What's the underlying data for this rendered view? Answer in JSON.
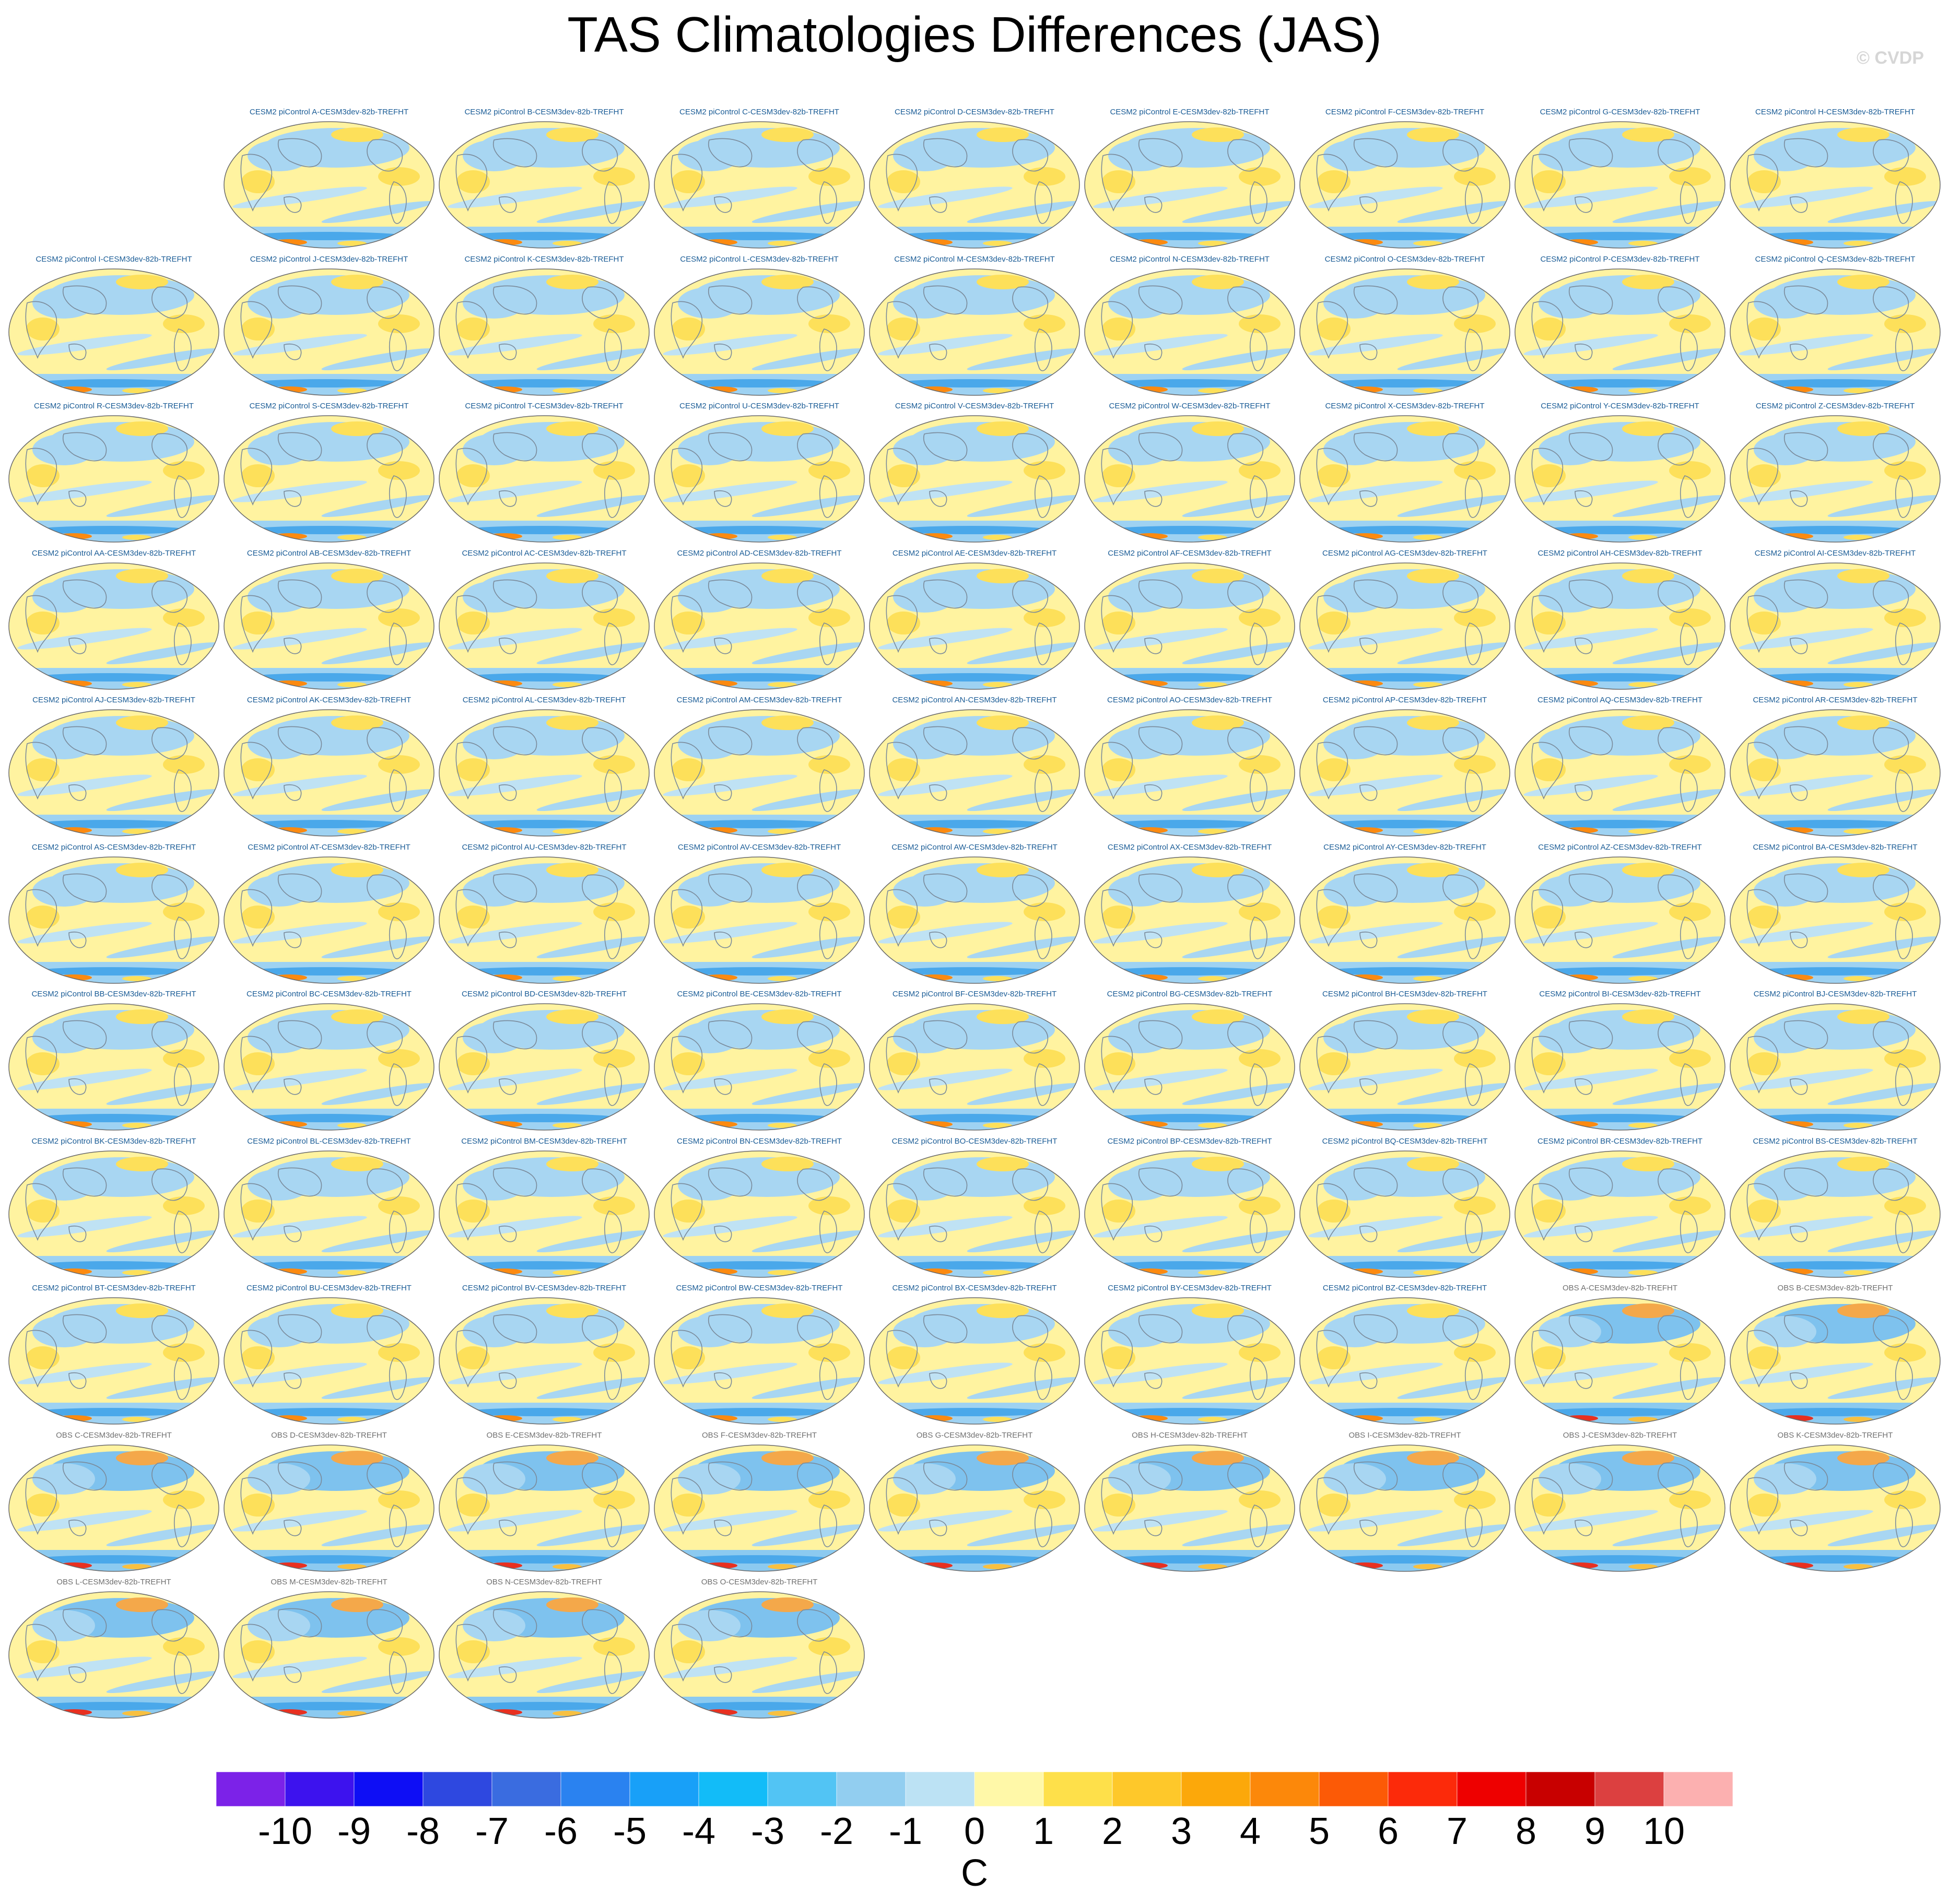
{
  "title": "TAS Climatologies Differences (JAS)",
  "credit": "© CVDP",
  "panels": [
    {
      "label": "CESM2 piControl A-CESM3dev-82b-TREFHT",
      "kind": "model"
    },
    {
      "label": "CESM2 piControl B-CESM3dev-82b-TREFHT",
      "kind": "model"
    },
    {
      "label": "CESM2 piControl C-CESM3dev-82b-TREFHT",
      "kind": "model"
    },
    {
      "label": "CESM2 piControl D-CESM3dev-82b-TREFHT",
      "kind": "model"
    },
    {
      "label": "CESM2 piControl E-CESM3dev-82b-TREFHT",
      "kind": "model"
    },
    {
      "label": "CESM2 piControl F-CESM3dev-82b-TREFHT",
      "kind": "model"
    },
    {
      "label": "CESM2 piControl G-CESM3dev-82b-TREFHT",
      "kind": "model"
    },
    {
      "label": "CESM2 piControl H-CESM3dev-82b-TREFHT",
      "kind": "model"
    },
    {
      "label": "CESM2 piControl I-CESM3dev-82b-TREFHT",
      "kind": "model"
    },
    {
      "label": "CESM2 piControl J-CESM3dev-82b-TREFHT",
      "kind": "model"
    },
    {
      "label": "CESM2 piControl K-CESM3dev-82b-TREFHT",
      "kind": "model"
    },
    {
      "label": "CESM2 piControl L-CESM3dev-82b-TREFHT",
      "kind": "model"
    },
    {
      "label": "CESM2 piControl M-CESM3dev-82b-TREFHT",
      "kind": "model"
    },
    {
      "label": "CESM2 piControl N-CESM3dev-82b-TREFHT",
      "kind": "model"
    },
    {
      "label": "CESM2 piControl O-CESM3dev-82b-TREFHT",
      "kind": "model"
    },
    {
      "label": "CESM2 piControl P-CESM3dev-82b-TREFHT",
      "kind": "model"
    },
    {
      "label": "CESM2 piControl Q-CESM3dev-82b-TREFHT",
      "kind": "model"
    },
    {
      "label": "CESM2 piControl R-CESM3dev-82b-TREFHT",
      "kind": "model"
    },
    {
      "label": "CESM2 piControl S-CESM3dev-82b-TREFHT",
      "kind": "model"
    },
    {
      "label": "CESM2 piControl T-CESM3dev-82b-TREFHT",
      "kind": "model"
    },
    {
      "label": "CESM2 piControl U-CESM3dev-82b-TREFHT",
      "kind": "model"
    },
    {
      "label": "CESM2 piControl V-CESM3dev-82b-TREFHT",
      "kind": "model"
    },
    {
      "label": "CESM2 piControl W-CESM3dev-82b-TREFHT",
      "kind": "model"
    },
    {
      "label": "CESM2 piControl X-CESM3dev-82b-TREFHT",
      "kind": "model"
    },
    {
      "label": "CESM2 piControl Y-CESM3dev-82b-TREFHT",
      "kind": "model"
    },
    {
      "label": "CESM2 piControl Z-CESM3dev-82b-TREFHT",
      "kind": "model"
    },
    {
      "label": "CESM2 piControl AA-CESM3dev-82b-TREFHT",
      "kind": "model"
    },
    {
      "label": "CESM2 piControl AB-CESM3dev-82b-TREFHT",
      "kind": "model"
    },
    {
      "label": "CESM2 piControl AC-CESM3dev-82b-TREFHT",
      "kind": "model"
    },
    {
      "label": "CESM2 piControl AD-CESM3dev-82b-TREFHT",
      "kind": "model"
    },
    {
      "label": "CESM2 piControl AE-CESM3dev-82b-TREFHT",
      "kind": "model"
    },
    {
      "label": "CESM2 piControl AF-CESM3dev-82b-TREFHT",
      "kind": "model"
    },
    {
      "label": "CESM2 piControl AG-CESM3dev-82b-TREFHT",
      "kind": "model"
    },
    {
      "label": "CESM2 piControl AH-CESM3dev-82b-TREFHT",
      "kind": "model"
    },
    {
      "label": "CESM2 piControl AI-CESM3dev-82b-TREFHT",
      "kind": "model"
    },
    {
      "label": "CESM2 piControl AJ-CESM3dev-82b-TREFHT",
      "kind": "model"
    },
    {
      "label": "CESM2 piControl AK-CESM3dev-82b-TREFHT",
      "kind": "model"
    },
    {
      "label": "CESM2 piControl AL-CESM3dev-82b-TREFHT",
      "kind": "model"
    },
    {
      "label": "CESM2 piControl AM-CESM3dev-82b-TREFHT",
      "kind": "model"
    },
    {
      "label": "CESM2 piControl AN-CESM3dev-82b-TREFHT",
      "kind": "model"
    },
    {
      "label": "CESM2 piControl AO-CESM3dev-82b-TREFHT",
      "kind": "model"
    },
    {
      "label": "CESM2 piControl AP-CESM3dev-82b-TREFHT",
      "kind": "model"
    },
    {
      "label": "CESM2 piControl AQ-CESM3dev-82b-TREFHT",
      "kind": "model"
    },
    {
      "label": "CESM2 piControl AR-CESM3dev-82b-TREFHT",
      "kind": "model"
    },
    {
      "label": "CESM2 piControl AS-CESM3dev-82b-TREFHT",
      "kind": "model"
    },
    {
      "label": "CESM2 piControl AT-CESM3dev-82b-TREFHT",
      "kind": "model"
    },
    {
      "label": "CESM2 piControl AU-CESM3dev-82b-TREFHT",
      "kind": "model"
    },
    {
      "label": "CESM2 piControl AV-CESM3dev-82b-TREFHT",
      "kind": "model"
    },
    {
      "label": "CESM2 piControl AW-CESM3dev-82b-TREFHT",
      "kind": "model"
    },
    {
      "label": "CESM2 piControl AX-CESM3dev-82b-TREFHT",
      "kind": "model"
    },
    {
      "label": "CESM2 piControl AY-CESM3dev-82b-TREFHT",
      "kind": "model"
    },
    {
      "label": "CESM2 piControl AZ-CESM3dev-82b-TREFHT",
      "kind": "model"
    },
    {
      "label": "CESM2 piControl BA-CESM3dev-82b-TREFHT",
      "kind": "model"
    },
    {
      "label": "CESM2 piControl BB-CESM3dev-82b-TREFHT",
      "kind": "model"
    },
    {
      "label": "CESM2 piControl BC-CESM3dev-82b-TREFHT",
      "kind": "model"
    },
    {
      "label": "CESM2 piControl BD-CESM3dev-82b-TREFHT",
      "kind": "model"
    },
    {
      "label": "CESM2 piControl BE-CESM3dev-82b-TREFHT",
      "kind": "model"
    },
    {
      "label": "CESM2 piControl BF-CESM3dev-82b-TREFHT",
      "kind": "model"
    },
    {
      "label": "CESM2 piControl BG-CESM3dev-82b-TREFHT",
      "kind": "model"
    },
    {
      "label": "CESM2 piControl BH-CESM3dev-82b-TREFHT",
      "kind": "model"
    },
    {
      "label": "CESM2 piControl BI-CESM3dev-82b-TREFHT",
      "kind": "model"
    },
    {
      "label": "CESM2 piControl BJ-CESM3dev-82b-TREFHT",
      "kind": "model"
    },
    {
      "label": "CESM2 piControl BK-CESM3dev-82b-TREFHT",
      "kind": "model"
    },
    {
      "label": "CESM2 piControl BL-CESM3dev-82b-TREFHT",
      "kind": "model"
    },
    {
      "label": "CESM2 piControl BM-CESM3dev-82b-TREFHT",
      "kind": "model"
    },
    {
      "label": "CESM2 piControl BN-CESM3dev-82b-TREFHT",
      "kind": "model"
    },
    {
      "label": "CESM2 piControl BO-CESM3dev-82b-TREFHT",
      "kind": "model"
    },
    {
      "label": "CESM2 piControl BP-CESM3dev-82b-TREFHT",
      "kind": "model"
    },
    {
      "label": "CESM2 piControl BQ-CESM3dev-82b-TREFHT",
      "kind": "model"
    },
    {
      "label": "CESM2 piControl BR-CESM3dev-82b-TREFHT",
      "kind": "model"
    },
    {
      "label": "CESM2 piControl BS-CESM3dev-82b-TREFHT",
      "kind": "model"
    },
    {
      "label": "CESM2 piControl BT-CESM3dev-82b-TREFHT",
      "kind": "model"
    },
    {
      "label": "CESM2 piControl BU-CESM3dev-82b-TREFHT",
      "kind": "model"
    },
    {
      "label": "CESM2 piControl BV-CESM3dev-82b-TREFHT",
      "kind": "model"
    },
    {
      "label": "CESM2 piControl BW-CESM3dev-82b-TREFHT",
      "kind": "model"
    },
    {
      "label": "CESM2 piControl BX-CESM3dev-82b-TREFHT",
      "kind": "model"
    },
    {
      "label": "CESM2 piControl BY-CESM3dev-82b-TREFHT",
      "kind": "model"
    },
    {
      "label": "CESM2 piControl BZ-CESM3dev-82b-TREFHT",
      "kind": "model"
    },
    {
      "label": "OBS A-CESM3dev-82b-TREFHT",
      "kind": "obs"
    },
    {
      "label": "OBS B-CESM3dev-82b-TREFHT",
      "kind": "obs"
    },
    {
      "label": "OBS C-CESM3dev-82b-TREFHT",
      "kind": "obs"
    },
    {
      "label": "OBS D-CESM3dev-82b-TREFHT",
      "kind": "obs"
    },
    {
      "label": "OBS E-CESM3dev-82b-TREFHT",
      "kind": "obs"
    },
    {
      "label": "OBS F-CESM3dev-82b-TREFHT",
      "kind": "obs"
    },
    {
      "label": "OBS G-CESM3dev-82b-TREFHT",
      "kind": "obs"
    },
    {
      "label": "OBS H-CESM3dev-82b-TREFHT",
      "kind": "obs"
    },
    {
      "label": "OBS I-CESM3dev-82b-TREFHT",
      "kind": "obs"
    },
    {
      "label": "OBS J-CESM3dev-82b-TREFHT",
      "kind": "obs"
    },
    {
      "label": "OBS K-CESM3dev-82b-TREFHT",
      "kind": "obs"
    },
    {
      "label": "OBS L-CESM3dev-82b-TREFHT",
      "kind": "obs"
    },
    {
      "label": "OBS M-CESM3dev-82b-TREFHT",
      "kind": "obs"
    },
    {
      "label": "OBS N-CESM3dev-82b-TREFHT",
      "kind": "obs"
    },
    {
      "label": "OBS O-CESM3dev-82b-TREFHT",
      "kind": "obs"
    }
  ],
  "colorbar": {
    "units": "C",
    "tick_labels": [
      "-10",
      "-9",
      "-8",
      "-7",
      "-6",
      "-5",
      "-4",
      "-3",
      "-2",
      "-1",
      "0",
      "1",
      "2",
      "3",
      "4",
      "5",
      "6",
      "7",
      "8",
      "9",
      "10"
    ],
    "colors": [
      "#7c22e8",
      "#3d12ee",
      "#0e0ef5",
      "#2e48e0",
      "#3a6ce0",
      "#2a82f0",
      "#18a0f8",
      "#12bcf8",
      "#52c4f4",
      "#92cef0",
      "#bce2f4",
      "#fff8a8",
      "#fee04a",
      "#fec82a",
      "#fca80a",
      "#fc880a",
      "#fc5a06",
      "#fc2a0a",
      "#ee0000",
      "#c80000",
      "#dc4040",
      "#fcb0b0"
    ]
  }
}
